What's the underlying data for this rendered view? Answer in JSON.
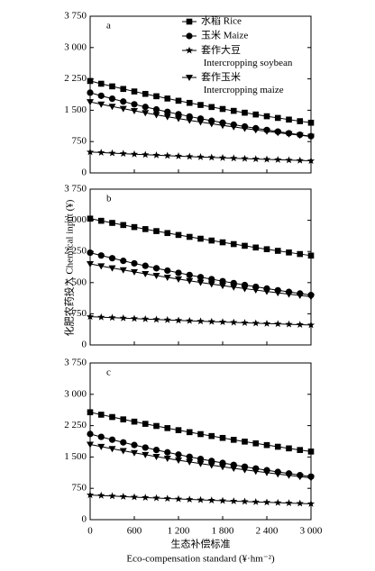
{
  "chart_data": [
    {
      "type": "line",
      "panel_label": "a",
      "x": [
        0,
        150,
        300,
        450,
        600,
        750,
        900,
        1050,
        1200,
        1350,
        1500,
        1650,
        1800,
        1950,
        2100,
        2250,
        2400,
        2550,
        2700,
        2850,
        3000
      ],
      "xlim": [
        0,
        3000
      ],
      "xticks": [
        0,
        600,
        1200,
        1800,
        2400,
        3000
      ],
      "show_xtick_labels": false,
      "ylim": [
        0,
        3750
      ],
      "yticks": [
        0,
        750,
        {
          "value": 1500,
          "label": "1 500"
        },
        {
          "value": 2250,
          "label": "2 250"
        },
        {
          "value": 3000,
          "label": "3 000"
        },
        {
          "value": 3750,
          "label": "3 750"
        }
      ],
      "legend": "top-right",
      "series": [
        {
          "name": "水稻 Rice",
          "color": "#000000",
          "marker": "square",
          "values": [
            2200,
            2134,
            2071,
            2009,
            1949,
            1891,
            1835,
            1780,
            1727,
            1676,
            1626,
            1577,
            1530,
            1485,
            1441,
            1398,
            1356,
            1316,
            1276,
            1238,
            1201
          ]
        },
        {
          "name": "玉米 Maize",
          "color": "#000000",
          "marker": "circle",
          "values": [
            1920,
            1846,
            1776,
            1708,
            1642,
            1579,
            1519,
            1461,
            1405,
            1351,
            1299,
            1249,
            1201,
            1155,
            1111,
            1069,
            1028,
            988,
            950,
            914,
            879
          ]
        },
        {
          "name": "套作大豆 Intercropping soybean",
          "color": "#000000",
          "marker": "star",
          "values": [
            500,
            487,
            473,
            461,
            448,
            436,
            425,
            413,
            402,
            391,
            381,
            371,
            361,
            351,
            342,
            333,
            324,
            315,
            306,
            298,
            290
          ]
        },
        {
          "name": "套作玉米 Intercropping maize",
          "color": "#000000",
          "marker": "triangle-down",
          "values": [
            1700,
            1644,
            1590,
            1538,
            1487,
            1438,
            1391,
            1345,
            1301,
            1258,
            1217,
            1177,
            1138,
            1101,
            1064,
            1029,
            996,
            963,
            931,
            901,
            871
          ]
        }
      ]
    },
    {
      "type": "line",
      "panel_label": "b",
      "ylabel": "化肥农药投入 Chemical input (¥)",
      "x": [
        0,
        150,
        300,
        450,
        600,
        750,
        900,
        1050,
        1200,
        1350,
        1500,
        1650,
        1800,
        1950,
        2100,
        2250,
        2400,
        2550,
        2700,
        2850,
        3000
      ],
      "xlim": [
        0,
        3000
      ],
      "xticks": [
        0,
        600,
        1200,
        1800,
        2400,
        3000
      ],
      "show_xtick_labels": false,
      "ylim": [
        0,
        3750
      ],
      "yticks": [
        0,
        750,
        {
          "value": 1500,
          "label": "1 500"
        },
        {
          "value": 2250,
          "label": "2 250"
        },
        {
          "value": 3000,
          "label": "3 000"
        },
        {
          "value": 3750,
          "label": "3 750"
        }
      ],
      "series": [
        {
          "color": "#000000",
          "marker": "square",
          "values": [
            3040,
            2988,
            2937,
            2886,
            2837,
            2788,
            2740,
            2693,
            2647,
            2601,
            2557,
            2513,
            2470,
            2427,
            2386,
            2345,
            2304,
            2265,
            2226,
            2188,
            2150
          ]
        },
        {
          "color": "#000000",
          "marker": "circle",
          "values": [
            2220,
            2153,
            2088,
            2024,
            1963,
            1904,
            1846,
            1790,
            1736,
            1683,
            1632,
            1583,
            1535,
            1488,
            1443,
            1400,
            1357,
            1316,
            1276,
            1238,
            1200
          ]
        },
        {
          "color": "#000000",
          "marker": "star",
          "values": [
            680,
            668,
            657,
            645,
            634,
            623,
            612,
            602,
            591,
            581,
            571,
            561,
            552,
            542,
            533,
            523,
            514,
            506,
            497,
            488,
            480
          ]
        },
        {
          "color": "#000000",
          "marker": "triangle-down",
          "values": [
            1950,
            1900,
            1851,
            1804,
            1758,
            1713,
            1669,
            1626,
            1584,
            1544,
            1504,
            1466,
            1428,
            1392,
            1356,
            1321,
            1287,
            1254,
            1222,
            1191,
            1160
          ]
        }
      ]
    },
    {
      "type": "line",
      "panel_label": "c",
      "xlabel": [
        "生态补偿标准",
        "Eco-compensation standard (¥·hm⁻²)"
      ],
      "x": [
        0,
        150,
        300,
        450,
        600,
        750,
        900,
        1050,
        1200,
        1350,
        1500,
        1650,
        1800,
        1950,
        2100,
        2250,
        2400,
        2550,
        2700,
        2850,
        3000
      ],
      "xlim": [
        0,
        3000
      ],
      "xticks": [
        0,
        600,
        {
          "value": 1200,
          "label": "1 200"
        },
        {
          "value": 1800,
          "label": "1 800"
        },
        {
          "value": 2400,
          "label": "2 400"
        },
        {
          "value": 3000,
          "label": "3 000"
        }
      ],
      "show_xtick_labels": true,
      "ylim": [
        0,
        3750
      ],
      "yticks": [
        0,
        750,
        {
          "value": 1500,
          "label": "1 500"
        },
        {
          "value": 2250,
          "label": "2 250"
        },
        {
          "value": 3000,
          "label": "3 000"
        },
        {
          "value": 3750,
          "label": "3 750"
        }
      ],
      "series": [
        {
          "color": "#000000",
          "marker": "square",
          "values": [
            2570,
            2512,
            2456,
            2400,
            2346,
            2293,
            2242,
            2191,
            2142,
            2094,
            2047,
            2001,
            1956,
            1911,
            1868,
            1826,
            1785,
            1745,
            1706,
            1667,
            1630
          ]
        },
        {
          "color": "#000000",
          "marker": "circle",
          "values": [
            2050,
            1981,
            1914,
            1849,
            1786,
            1726,
            1668,
            1611,
            1557,
            1504,
            1453,
            1404,
            1357,
            1311,
            1267,
            1224,
            1182,
            1142,
            1104,
            1066,
            1030
          ]
        },
        {
          "color": "#000000",
          "marker": "star",
          "values": [
            590,
            577,
            565,
            552,
            540,
            528,
            517,
            506,
            495,
            484,
            473,
            463,
            453,
            443,
            434,
            424,
            415,
            406,
            397,
            389,
            380
          ]
        },
        {
          "color": "#000000",
          "marker": "triangle-down",
          "values": [
            1800,
            1748,
            1697,
            1648,
            1600,
            1554,
            1509,
            1465,
            1423,
            1382,
            1342,
            1303,
            1265,
            1228,
            1193,
            1158,
            1125,
            1092,
            1061,
            1030,
            1000
          ]
        }
      ]
    }
  ]
}
